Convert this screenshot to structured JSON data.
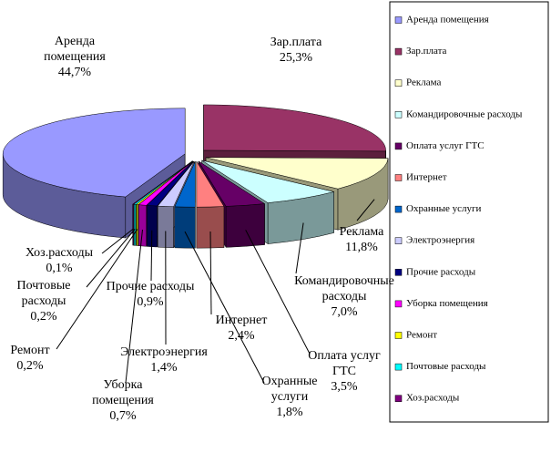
{
  "chart_data": {
    "type": "pie",
    "categories": [
      "Аренда помещения",
      "Зар.плата",
      "Реклама",
      "Командировочные расходы",
      "Оплата услуг ГТС",
      "Интернет",
      "Охранные услуги",
      "Электроэнергия",
      "Прочие расходы",
      "Уборка помещения",
      "Ремонт",
      "Почтовые расходы",
      "Хоз.расходы"
    ],
    "values": [
      44.7,
      25.3,
      11.8,
      7.0,
      3.5,
      2.4,
      1.8,
      1.4,
      0.9,
      0.7,
      0.2,
      0.2,
      0.1
    ],
    "value_labels": [
      "44,7%",
      "25,3%",
      "11,8%",
      "7,0%",
      "3,5%",
      "2,4%",
      "1,8%",
      "1,4%",
      "0,9%",
      "0,7%",
      "0,2%",
      "0,2%",
      "0,1%"
    ],
    "colors": [
      "#9999ff",
      "#993366",
      "#ffffcc",
      "#ccffff",
      "#660066",
      "#ff8080",
      "#0066cc",
      "#ccccff",
      "#000080",
      "#ff00ff",
      "#ffff00",
      "#00ffff",
      "#800080"
    ],
    "legend": "right"
  }
}
